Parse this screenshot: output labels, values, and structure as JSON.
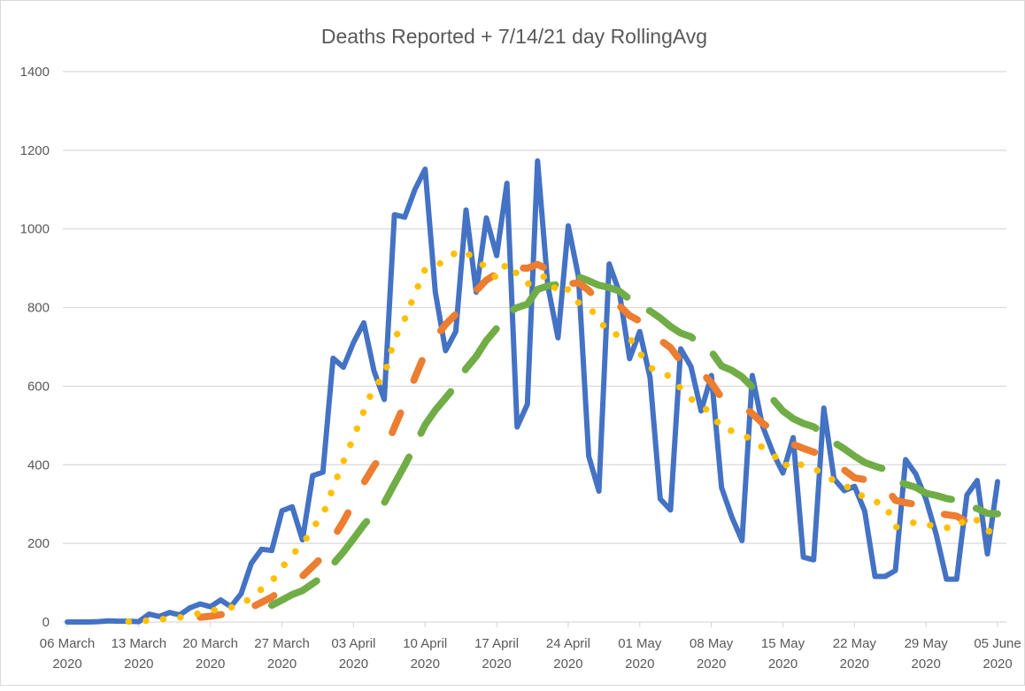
{
  "chart_data": {
    "type": "line",
    "title": "Deaths Reported + 7/14/21 day RollingAvg",
    "xlabel": "",
    "ylabel": "",
    "ylim": [
      0,
      1400
    ],
    "yticks": [
      "0",
      "200",
      "400",
      "600",
      "800",
      "1000",
      "1200",
      "1400"
    ],
    "grid": true,
    "legend": "none",
    "x_tick_labels": [
      [
        "06 March",
        "2020"
      ],
      [
        "13 March",
        "2020"
      ],
      [
        "20 March",
        "2020"
      ],
      [
        "27 March",
        "2020"
      ],
      [
        "03 April",
        "2020"
      ],
      [
        "10 April",
        "2020"
      ],
      [
        "17 April",
        "2020"
      ],
      [
        "24 April",
        "2020"
      ],
      [
        "01 May",
        "2020"
      ],
      [
        "08 May",
        "2020"
      ],
      [
        "15 May",
        "2020"
      ],
      [
        "22 May",
        "2020"
      ],
      [
        "29 May",
        "2020"
      ],
      [
        "05 June",
        "2020"
      ]
    ],
    "x_start": "06 March 2020",
    "x_end": "05 June 2020",
    "daily_deaths": [
      0,
      0,
      0,
      1,
      3,
      2,
      2,
      1,
      20,
      14,
      24,
      18,
      36,
      46,
      39,
      56,
      39,
      72,
      149,
      185,
      182,
      283,
      293,
      209,
      372,
      381,
      671,
      648,
      711,
      761,
      639,
      566,
      1036,
      1030,
      1100,
      1152,
      839,
      690,
      739,
      1048,
      839,
      1028,
      932,
      1116,
      496,
      554,
      1173,
      855,
      723,
      1008,
      879,
      422,
      333,
      911,
      839,
      670,
      739,
      622,
      313,
      285,
      695,
      650,
      537,
      627,
      342,
      267,
      207,
      627,
      499,
      432,
      379,
      469,
      165,
      158,
      544,
      364,
      334,
      345,
      282,
      116,
      116,
      131,
      413,
      376,
      312,
      222,
      109,
      109,
      323,
      360,
      173,
      357
    ],
    "series": [
      {
        "source": "daily_deaths",
        "window": 1,
        "color": "#4472C4",
        "style": "solid"
      },
      {
        "source": "daily_deaths",
        "window": 7,
        "color": "#FFC000",
        "style": "round-dot"
      },
      {
        "source": "daily_deaths",
        "window": 14,
        "color": "#ED7D31",
        "style": "dash"
      },
      {
        "source": "daily_deaths",
        "window": 21,
        "color": "#70AD47",
        "style": "long-dash"
      }
    ]
  }
}
